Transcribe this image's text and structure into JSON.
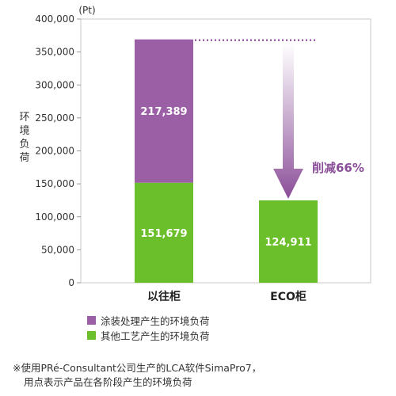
{
  "chart_data": {
    "type": "bar",
    "stacked": true,
    "unit_label": "(Pt)",
    "ylabel": "环境负荷",
    "ylim": [
      0,
      400000
    ],
    "yticks": [
      "0",
      "50,000",
      "100,000",
      "150,000",
      "200,000",
      "250,000",
      "300,000",
      "350,000",
      "400,000"
    ],
    "categories": [
      "以往柜",
      "ECO柜"
    ],
    "series": [
      {
        "name": "其他工艺产生的环境负荷",
        "color": "#6abf2a",
        "values": [
          151679,
          124911
        ],
        "labels": [
          "151,679",
          "124,911"
        ]
      },
      {
        "name": "涂装处理产生的环境负荷",
        "color": "#9b5fa6",
        "values": [
          217389,
          0
        ],
        "labels": [
          "217,389",
          ""
        ]
      }
    ],
    "annotation": {
      "text": "削减66%",
      "color": "#8a4d98"
    },
    "grid": false,
    "legend_placement": "bottom-left"
  },
  "legend": {
    "items": [
      {
        "label": "涂装处理产生的环境负荷",
        "color": "#9b5fa6"
      },
      {
        "label": "其他工艺产生的环境负荷",
        "color": "#6abf2a"
      }
    ]
  },
  "note": {
    "line1": "※使用PRé-Consultant公司生产的LCA软件SimaPro7，",
    "line2": "用点表示产品在各阶段产生的环境负荷"
  }
}
